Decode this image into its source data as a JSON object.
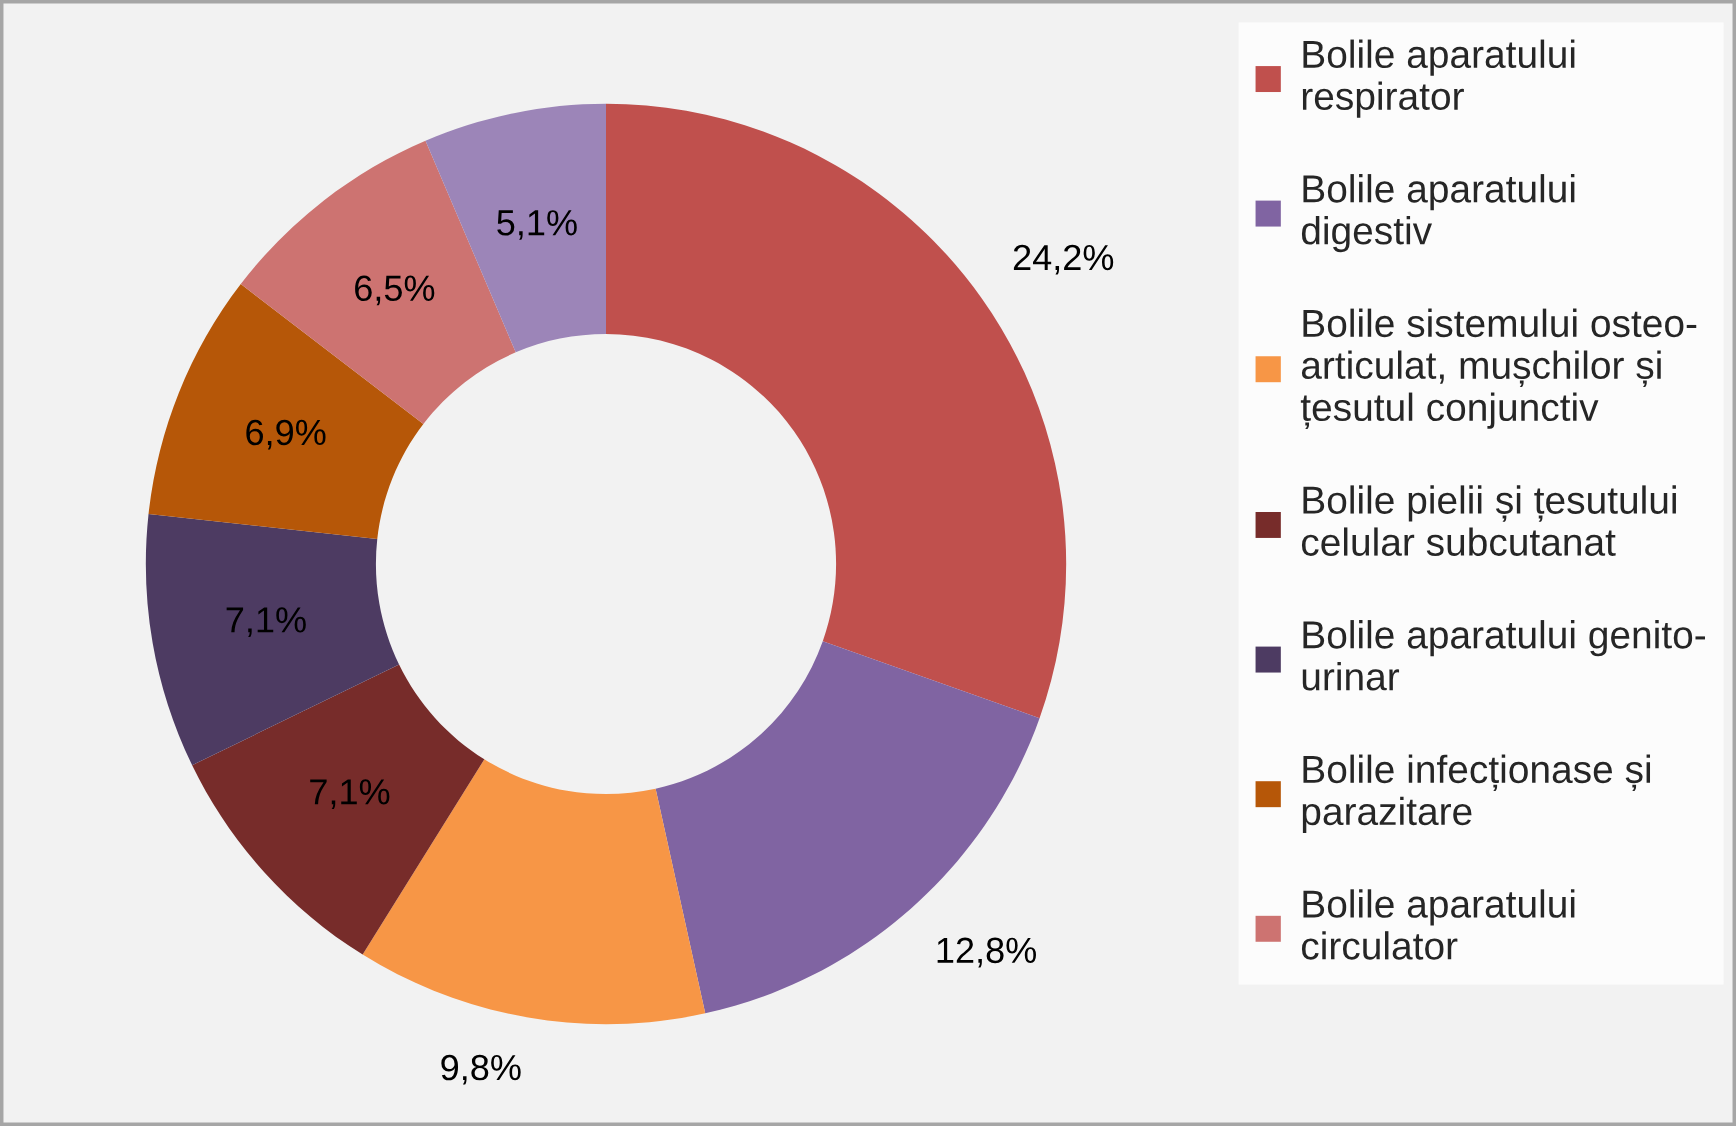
{
  "chart_data": {
    "type": "donut",
    "categories": [
      "Bolile aparatului respirator",
      "Bolile aparatului digestiv",
      "Bolile sistemului osteo-articulat, mușchilor și țesutul conjunctiv",
      "Bolile pielii și țesutului celular subcutanat",
      "Bolile aparatului genito-urinar",
      "Bolile infecționase și parazitare",
      "Bolile aparatului circulator",
      null
    ],
    "values": [
      24.2,
      12.8,
      9.8,
      7.1,
      7.1,
      6.9,
      6.5,
      5.1
    ],
    "colors": [
      "#c0504d",
      "#8064a2",
      "#f79646",
      "#772c2a",
      "#4d3b62",
      "#b65708",
      "#cd7371",
      "#9c85b8"
    ],
    "value_labels": [
      "24,2%",
      "12,8%",
      "9,8%",
      "7,1%",
      "7,1%",
      "6,9%",
      "6,5%",
      "5,1%"
    ],
    "legend": "right"
  }
}
